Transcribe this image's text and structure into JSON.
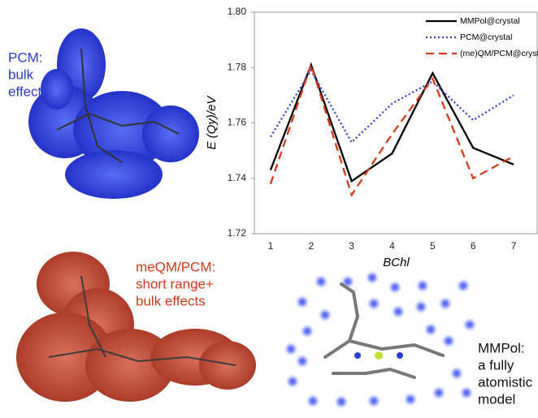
{
  "chart_data": {
    "type": "line",
    "x_label": "BChl",
    "y_label": "E (Qy)/eV",
    "categories": [
      "1",
      "2",
      "3",
      "4",
      "5",
      "6",
      "7"
    ],
    "ylim": [
      1.72,
      1.8
    ],
    "yticks": [
      {
        "value": 1.72,
        "label": "1.72"
      },
      {
        "value": 1.74,
        "label": "1.74"
      },
      {
        "value": 1.76,
        "label": "1.76"
      },
      {
        "value": 1.78,
        "label": "1.78"
      },
      {
        "value": 1.8,
        "label": "1.80"
      }
    ],
    "series": [
      {
        "name": "MMPol@crystal",
        "color": "#000000",
        "style": "solid",
        "values": [
          1.743,
          1.781,
          1.739,
          1.749,
          1.778,
          1.751,
          1.745
        ]
      },
      {
        "name": "PCM@crystal",
        "color": "#2f3fd0",
        "style": "dotted",
        "values": [
          1.755,
          1.779,
          1.753,
          1.767,
          1.775,
          1.761,
          1.77
        ]
      },
      {
        "name": "(me)QM/PCM@crystal",
        "color": "#d93a1c",
        "style": "dashed",
        "values": [
          1.738,
          1.781,
          1.734,
          1.756,
          1.776,
          1.74,
          1.748
        ]
      }
    ]
  },
  "panels": [
    {
      "color": "#2b3bd4",
      "lines": [
        "PCM:",
        "bulk",
        "effects"
      ]
    },
    {
      "color": "#d23b1a",
      "lines": [
        "meQM/PCM:",
        "short range+",
        "bulk effects"
      ]
    },
    {
      "color": "#111111",
      "lines": [
        "MMPol:",
        "a fully",
        "atomistic",
        "model"
      ]
    }
  ]
}
